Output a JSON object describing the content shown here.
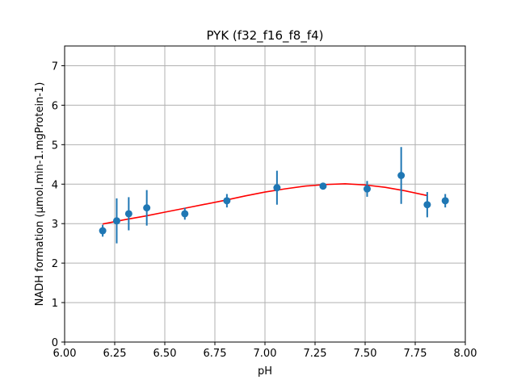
{
  "chart_data": {
    "type": "scatter",
    "title": "PYK (f32_f16_f8_f4)",
    "xlabel": "pH",
    "ylabel": "NADH formation (µmol.min-1.mgProtein-1)",
    "xlim": [
      6.0,
      8.0
    ],
    "ylim": [
      0,
      7.5
    ],
    "xticks": [
      "6.00",
      "6.25",
      "6.50",
      "6.75",
      "7.00",
      "7.25",
      "7.50",
      "7.75",
      "8.00"
    ],
    "yticks": [
      "0",
      "1",
      "2",
      "3",
      "4",
      "5",
      "6",
      "7"
    ],
    "grid": true,
    "series": [
      {
        "type": "scatter-errorbar",
        "color": "#1f77b4",
        "points": [
          {
            "x": 6.19,
            "y": 2.82,
            "err": 0.15
          },
          {
            "x": 6.26,
            "y": 3.07,
            "err": 0.57
          },
          {
            "x": 6.32,
            "y": 3.25,
            "err": 0.42
          },
          {
            "x": 6.41,
            "y": 3.4,
            "err": 0.45
          },
          {
            "x": 6.6,
            "y": 3.25,
            "err": 0.15
          },
          {
            "x": 6.81,
            "y": 3.58,
            "err": 0.17
          },
          {
            "x": 7.06,
            "y": 3.91,
            "err": 0.43
          },
          {
            "x": 7.29,
            "y": 3.95,
            "err": 0.07
          },
          {
            "x": 7.51,
            "y": 3.88,
            "err": 0.2
          },
          {
            "x": 7.68,
            "y": 4.22,
            "err": 0.72
          },
          {
            "x": 7.81,
            "y": 3.48,
            "err": 0.32
          },
          {
            "x": 7.9,
            "y": 3.58,
            "err": 0.17
          }
        ]
      },
      {
        "type": "line",
        "color": "#ff0000",
        "x": [
          6.19,
          6.3,
          6.4,
          6.5,
          6.6,
          6.7,
          6.8,
          6.9,
          7.0,
          7.1,
          7.2,
          7.3,
          7.4,
          7.5,
          7.6,
          7.7,
          7.81
        ],
        "y": [
          2.99,
          3.1,
          3.19,
          3.29,
          3.39,
          3.49,
          3.59,
          3.7,
          3.8,
          3.88,
          3.95,
          3.99,
          4.01,
          3.98,
          3.92,
          3.83,
          3.71
        ]
      }
    ]
  }
}
